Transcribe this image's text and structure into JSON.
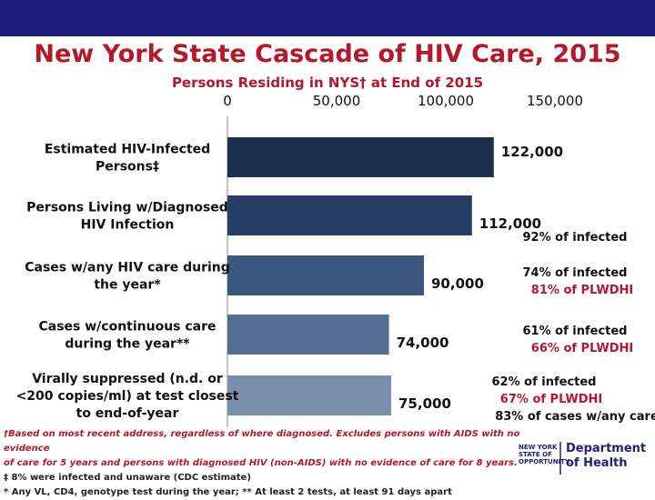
{
  "title": "New York State Cascade of HIV Care, 2015",
  "subtitle": "Persons Residing in NYS† at End of 2015",
  "chart_data": {
    "type": "bar",
    "orientation": "horizontal",
    "xlim": [
      0,
      160000
    ],
    "ticks": [
      0,
      50000,
      100000,
      150000
    ],
    "tick_labels": [
      "0",
      "50,000",
      "100,000",
      "150,000"
    ],
    "categories": [
      [
        "Estimated HIV-Infected",
        "Persons‡"
      ],
      [
        "Persons Living w/Diagnosed",
        "HIV Infection"
      ],
      [
        "Cases w/any HIV care during",
        "the year*"
      ],
      [
        "Cases w/continuous care",
        "during the year**"
      ],
      [
        "Virally suppressed (n.d. or",
        "<200 copies/ml) at test closest",
        "to end-of-year"
      ]
    ],
    "values": [
      122000,
      112000,
      90000,
      74000,
      75000
    ],
    "value_labels": [
      "122,000",
      "112,000",
      "90,000",
      "74,000",
      "75,000"
    ],
    "bar_colors": [
      "#1c2f4e",
      "#283f65",
      "#3d587f",
      "#566e92",
      "#7b8ea9"
    ],
    "annotations": [
      [],
      [
        {
          "text": "92% of infected",
          "color": "#111111"
        }
      ],
      [
        {
          "text": "74% of infected",
          "color": "#111111"
        },
        {
          "text": "81% of PLWDHI",
          "color": "#b5172b"
        }
      ],
      [
        {
          "text": "61% of infected",
          "color": "#111111"
        },
        {
          "text": "66% of PLWDHI",
          "color": "#b5172b"
        }
      ],
      [
        {
          "text": "62% of infected",
          "color": "#111111"
        },
        {
          "text": "67% of PLWDHI",
          "color": "#b5172b"
        },
        {
          "text": "83% of cases w/any care",
          "color": "#111111"
        }
      ]
    ]
  },
  "footnotes": {
    "note1_line1": "†Based on most recent address, regardless of where diagnosed. Excludes persons with AIDS with no evidence",
    "note1_line2": "of care for 5 years and persons with diagnosed HIV (non-AIDS) with no evidence of care for 8 years.",
    "note2": "‡ 8% were infected and unaware (CDC estimate)",
    "note3": "* Any VL, CD4, genotype test during the year; ** At least 2 tests, at least 91 days apart"
  },
  "logo": {
    "state_line1": "NEW YORK",
    "state_line2": "STATE OF",
    "state_line3": "OPPORTUNITY.",
    "dept_line1": "Department",
    "dept_line2": "of Health"
  },
  "colors": {
    "brand_red": "#b5172b",
    "brand_navy": "#1d1f7c"
  }
}
